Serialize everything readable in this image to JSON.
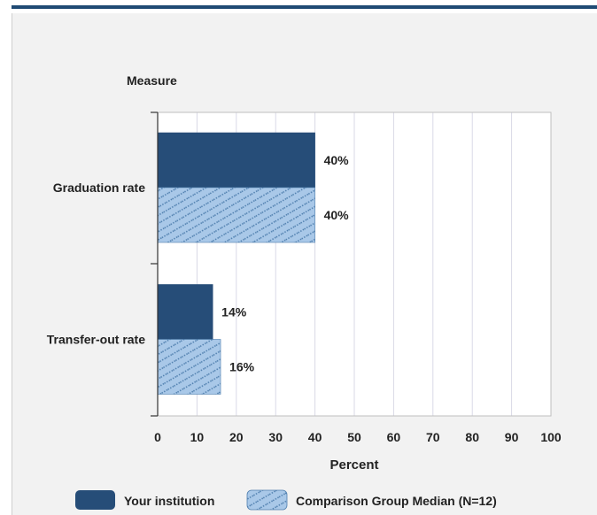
{
  "colors": {
    "series_primary": "#264d78",
    "series_secondary_fill": "#a9c8e8",
    "series_secondary_hatch": "#4f7fae",
    "topbar": "#1f4a73",
    "panel_bg": "#f2f2f2",
    "plot_bg": "#ffffff",
    "grid": "#d9d9e6"
  },
  "chart_data": {
    "type": "bar",
    "orientation": "horizontal",
    "title": "",
    "ylabel": "Measure",
    "xlabel": "Percent",
    "categories": [
      "Graduation rate",
      "Transfer-out rate"
    ],
    "xlim": [
      0,
      100
    ],
    "xticks": [
      0,
      10,
      20,
      30,
      40,
      50,
      60,
      70,
      80,
      90,
      100
    ],
    "grid": "vertical",
    "legend_position": "bottom",
    "series": [
      {
        "name": "Your institution",
        "values": [
          40,
          14
        ],
        "labels": [
          "40%",
          "14%"
        ],
        "pattern": "solid"
      },
      {
        "name": "Comparison Group Median (N=12)",
        "values": [
          40,
          16
        ],
        "labels": [
          "40%",
          "16%"
        ],
        "pattern": "hatched"
      }
    ]
  }
}
